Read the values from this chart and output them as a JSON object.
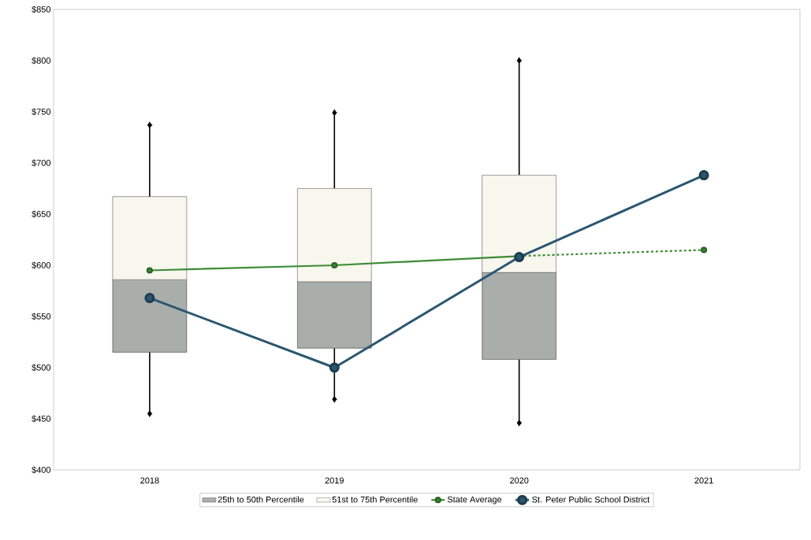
{
  "chart_data": {
    "type": "box",
    "categories": [
      "2018",
      "2019",
      "2020",
      "2021"
    ],
    "series": [
      {
        "name": "25th to 50th Percentile",
        "color": "#a9aeaa",
        "boxes": [
          {
            "low": 455,
            "q1": 515,
            "median": 586,
            "q3": 667,
            "high": 737
          },
          {
            "low": 469,
            "q1": 519,
            "median": 584,
            "q3": 675,
            "high": 749
          },
          {
            "low": 446,
            "q1": 508,
            "median": 593,
            "q3": 688,
            "high": 800
          },
          null
        ]
      },
      {
        "name": "51st to 75th Percentile",
        "type": "bar",
        "color": "#f7f7ee",
        "base": [
          586,
          584,
          593,
          null
        ],
        "values": [
          81,
          91,
          95,
          null
        ]
      },
      {
        "name": "State Average",
        "type": "line",
        "color": "#3d8a35",
        "marker": "circle",
        "line_style": "solid",
        "values": [
          595,
          600,
          609,
          null
        ]
      },
      {
        "type": "line",
        "color": "#3d8a35",
        "marker": "circle",
        "line_style": "dashed",
        "values": [
          null,
          null,
          609,
          615
        ]
      },
      {
        "name": "St. Peter Public School District",
        "type": "line",
        "color": "#2b5670",
        "marker": "circle",
        "line_style": "solid",
        "values": [
          568,
          500,
          608,
          688
        ]
      }
    ],
    "ylim": [
      400,
      850
    ],
    "yticks": [
      {
        "value": 400,
        "label": "$400"
      },
      {
        "value": 450,
        "label": "$450"
      },
      {
        "value": 500,
        "label": "$500"
      },
      {
        "value": 550,
        "label": "$550"
      },
      {
        "value": 600,
        "label": "$600"
      },
      {
        "value": 650,
        "label": "$650"
      },
      {
        "value": 700,
        "label": "$700"
      },
      {
        "value": 750,
        "label": "$750"
      },
      {
        "value": 800,
        "label": "$800"
      },
      {
        "value": 850,
        "label": "$850"
      }
    ],
    "grid": false,
    "legend": "bottom"
  }
}
